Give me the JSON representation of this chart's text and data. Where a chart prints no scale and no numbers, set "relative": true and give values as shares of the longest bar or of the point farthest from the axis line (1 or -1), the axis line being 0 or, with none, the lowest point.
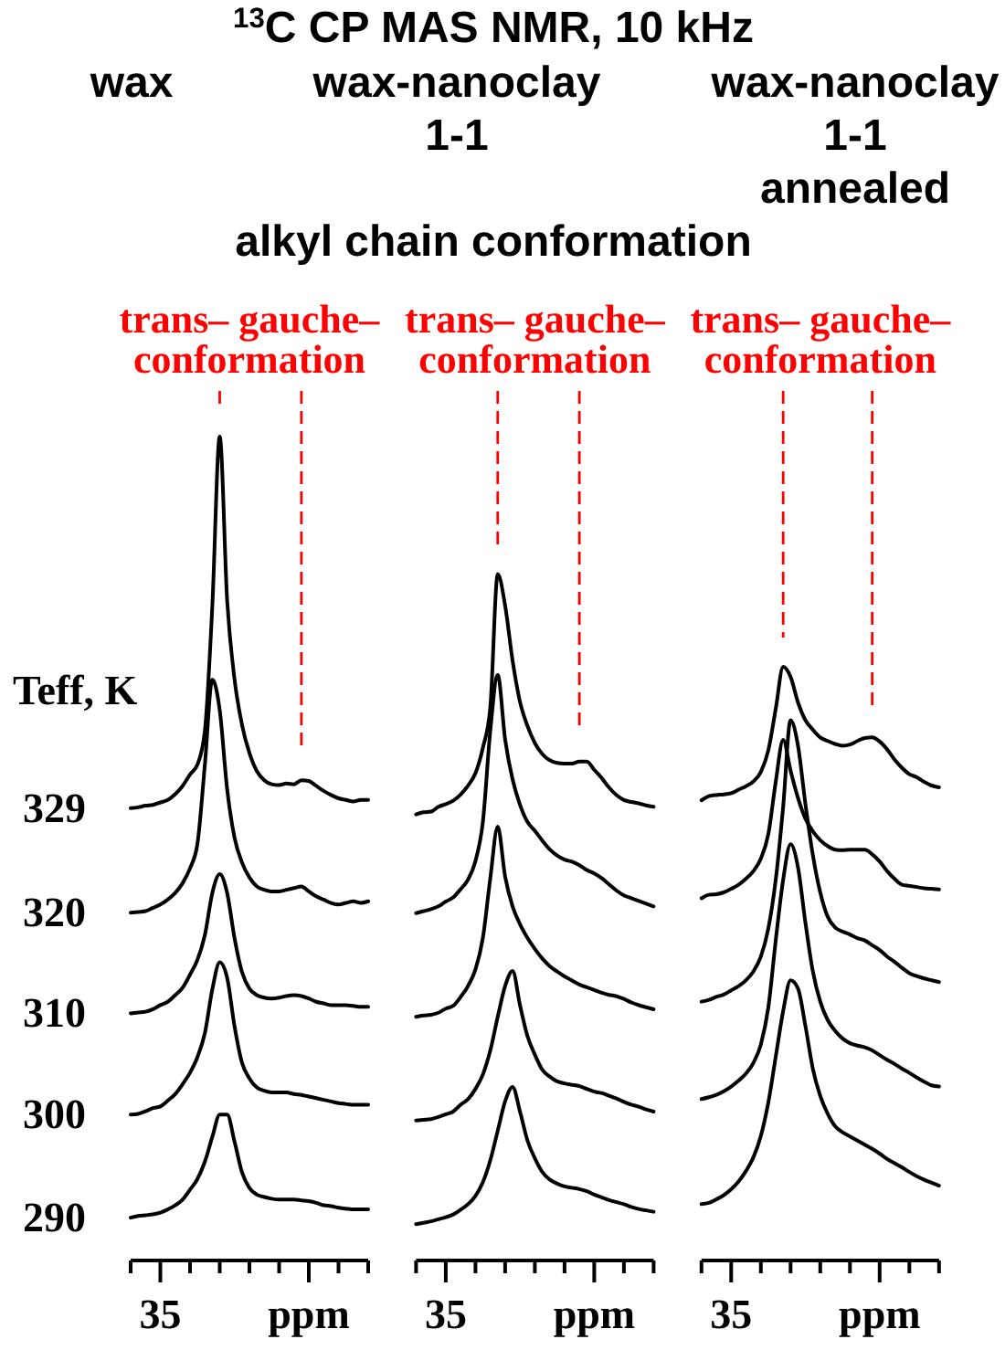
{
  "chart_data": [
    {
      "type": "line",
      "subtitle": "wax",
      "ylabel": "Teff, K",
      "relative": true,
      "categories": [
        null,
        null,
        null,
        null,
        "35",
        null,
        null,
        null,
        null,
        null,
        null,
        null,
        null,
        null,
        null,
        null,
        null,
        null,
        null,
        null,
        null,
        null,
        null,
        null,
        "ppm",
        null,
        null,
        null,
        null,
        null,
        null,
        null,
        null
      ],
      "series": [
        {
          "name": "329",
          "color": "#000000",
          "values": [
            0.549,
            0.55,
            0.552,
            0.553,
            0.556,
            0.559,
            0.566,
            0.576,
            0.59,
            0.602,
            0.643,
            0.794,
            1.0,
            0.801,
            0.705,
            0.65,
            0.616,
            0.594,
            0.583,
            0.578,
            0.577,
            0.579,
            0.578,
            0.583,
            0.582,
            0.576,
            0.57,
            0.565,
            0.561,
            0.559,
            0.557,
            0.559,
            0.559
          ]
        },
        {
          "name": "320",
          "color": "#000000",
          "values": [
            0.422,
            0.423,
            0.424,
            0.428,
            0.432,
            0.438,
            0.446,
            0.458,
            0.476,
            0.506,
            0.602,
            0.705,
            0.668,
            0.572,
            0.513,
            0.483,
            0.465,
            0.454,
            0.45,
            0.448,
            0.448,
            0.45,
            0.452,
            0.454,
            0.448,
            0.442,
            0.438,
            0.434,
            0.432,
            0.434,
            0.436,
            0.434,
            0.436
          ]
        },
        {
          "name": "310",
          "color": "#000000",
          "values": [
            0.3,
            0.301,
            0.302,
            0.305,
            0.31,
            0.314,
            0.322,
            0.331,
            0.347,
            0.365,
            0.395,
            0.446,
            0.469,
            0.446,
            0.391,
            0.35,
            0.33,
            0.322,
            0.319,
            0.318,
            0.319,
            0.321,
            0.322,
            0.321,
            0.318,
            0.314,
            0.312,
            0.31,
            0.31,
            0.31,
            0.309,
            0.308,
            0.308
          ]
        },
        {
          "name": "300",
          "color": "#000000",
          "values": [
            0.177,
            0.178,
            0.181,
            0.185,
            0.187,
            0.194,
            0.202,
            0.214,
            0.228,
            0.247,
            0.276,
            0.329,
            0.362,
            0.343,
            0.284,
            0.24,
            0.221,
            0.21,
            0.206,
            0.204,
            0.204,
            0.204,
            0.202,
            0.201,
            0.199,
            0.197,
            0.195,
            0.193,
            0.191,
            0.19,
            0.189,
            0.189,
            0.189
          ]
        },
        {
          "name": "290",
          "color": "#000000",
          "values": [
            0.052,
            0.054,
            0.055,
            0.056,
            0.058,
            0.062,
            0.067,
            0.074,
            0.086,
            0.099,
            0.12,
            0.15,
            0.177,
            0.177,
            0.144,
            0.107,
            0.088,
            0.08,
            0.077,
            0.075,
            0.074,
            0.074,
            0.074,
            0.073,
            0.072,
            0.07,
            0.067,
            0.066,
            0.064,
            0.063,
            0.062,
            0.062,
            0.062
          ]
        }
      ],
      "annotations": [
        "trans– gauche– conformation"
      ]
    },
    {
      "type": "line",
      "title": "$^{13}$C CP MAS NMR, 10 kHz",
      "subtitle": "wax-nanoclay 1-1",
      "relative": true,
      "categories": [
        null,
        null,
        null,
        null,
        "35",
        null,
        null,
        null,
        null,
        null,
        null,
        null,
        null,
        null,
        null,
        null,
        null,
        null,
        null,
        null,
        null,
        null,
        null,
        null,
        "ppm",
        null,
        null,
        null,
        null,
        null,
        null,
        null,
        null
      ],
      "series": [
        {
          "color": "#000000",
          "values": [
            0.65,
            0.653,
            0.654,
            0.661,
            0.665,
            0.67,
            0.679,
            0.692,
            0.71,
            0.747,
            0.806,
            1.0,
            0.954,
            0.874,
            0.814,
            0.779,
            0.754,
            0.738,
            0.729,
            0.725,
            0.724,
            0.724,
            0.727,
            0.727,
            0.715,
            0.703,
            0.689,
            0.678,
            0.671,
            0.668,
            0.666,
            0.663,
            0.661
          ]
        },
        {
          "color": "#000000",
          "values": [
            0.506,
            0.509,
            0.512,
            0.516,
            0.523,
            0.529,
            0.541,
            0.555,
            0.582,
            0.639,
            0.772,
            0.853,
            0.759,
            0.701,
            0.664,
            0.639,
            0.626,
            0.612,
            0.599,
            0.59,
            0.584,
            0.581,
            0.576,
            0.569,
            0.564,
            0.557,
            0.548,
            0.539,
            0.532,
            0.528,
            0.524,
            0.52,
            0.516
          ]
        },
        {
          "color": "#000000",
          "values": [
            0.355,
            0.357,
            0.358,
            0.361,
            0.367,
            0.371,
            0.384,
            0.4,
            0.424,
            0.47,
            0.557,
            0.632,
            0.559,
            0.516,
            0.49,
            0.47,
            0.454,
            0.44,
            0.429,
            0.421,
            0.414,
            0.408,
            0.402,
            0.398,
            0.394,
            0.39,
            0.387,
            0.385,
            0.381,
            0.376,
            0.372,
            0.369,
            0.366
          ]
        },
        {
          "color": "#000000",
          "values": [
            0.204,
            0.205,
            0.206,
            0.209,
            0.213,
            0.217,
            0.227,
            0.235,
            0.25,
            0.271,
            0.306,
            0.355,
            0.4,
            0.422,
            0.372,
            0.327,
            0.3,
            0.278,
            0.268,
            0.261,
            0.258,
            0.256,
            0.254,
            0.25,
            0.246,
            0.244,
            0.24,
            0.236,
            0.231,
            0.227,
            0.224,
            0.22,
            0.217
          ]
        },
        {
          "color": "#000000",
          "values": [
            0.053,
            0.055,
            0.057,
            0.06,
            0.063,
            0.067,
            0.074,
            0.082,
            0.094,
            0.114,
            0.146,
            0.189,
            0.232,
            0.253,
            0.217,
            0.175,
            0.149,
            0.129,
            0.118,
            0.112,
            0.108,
            0.106,
            0.104,
            0.101,
            0.096,
            0.092,
            0.088,
            0.085,
            0.082,
            0.078,
            0.075,
            0.073,
            0.071
          ]
        }
      ],
      "annotations": [
        "trans– gauche– conformation",
        "alkyl chain conformation"
      ]
    },
    {
      "type": "line",
      "subtitle": "wax-nanoclay 1-1 annealed",
      "relative": true,
      "categories": [
        null,
        null,
        null,
        null,
        "35",
        null,
        null,
        null,
        null,
        null,
        null,
        null,
        null,
        null,
        null,
        null,
        null,
        null,
        null,
        null,
        null,
        null,
        null,
        null,
        "ppm",
        null,
        null,
        null,
        null,
        null,
        null,
        null,
        null
      ],
      "series": [
        {
          "color": "#000000",
          "values": [
            0.775,
            0.782,
            0.784,
            0.785,
            0.787,
            0.793,
            0.799,
            0.807,
            0.823,
            0.859,
            0.929,
            1.0,
            0.983,
            0.94,
            0.91,
            0.894,
            0.881,
            0.875,
            0.87,
            0.867,
            0.869,
            0.875,
            0.88,
            0.881,
            0.874,
            0.861,
            0.844,
            0.83,
            0.819,
            0.814,
            0.806,
            0.8,
            0.797
          ]
        },
        {
          "color": "#000000",
          "values": [
            0.61,
            0.616,
            0.617,
            0.62,
            0.626,
            0.633,
            0.643,
            0.656,
            0.677,
            0.718,
            0.806,
            0.877,
            0.825,
            0.779,
            0.744,
            0.723,
            0.708,
            0.698,
            0.692,
            0.691,
            0.692,
            0.692,
            0.692,
            0.684,
            0.672,
            0.656,
            0.643,
            0.633,
            0.631,
            0.629,
            0.627,
            0.626,
            0.625
          ]
        },
        {
          "color": "#000000",
          "values": [
            0.436,
            0.439,
            0.444,
            0.448,
            0.455,
            0.462,
            0.472,
            0.487,
            0.512,
            0.559,
            0.641,
            0.764,
            0.91,
            0.867,
            0.769,
            0.683,
            0.62,
            0.579,
            0.561,
            0.554,
            0.549,
            0.543,
            0.539,
            0.531,
            0.523,
            0.512,
            0.503,
            0.493,
            0.484,
            0.479,
            0.475,
            0.472,
            0.469
          ]
        },
        {
          "color": "#000000",
          "values": [
            0.272,
            0.275,
            0.279,
            0.285,
            0.293,
            0.303,
            0.315,
            0.333,
            0.364,
            0.426,
            0.539,
            0.641,
            0.701,
            0.662,
            0.569,
            0.487,
            0.436,
            0.405,
            0.387,
            0.374,
            0.366,
            0.362,
            0.359,
            0.354,
            0.346,
            0.338,
            0.331,
            0.323,
            0.316,
            0.308,
            0.301,
            0.295,
            0.293
          ]
        },
        {
          "color": "#000000",
          "values": [
            0.095,
            0.097,
            0.103,
            0.11,
            0.12,
            0.133,
            0.151,
            0.174,
            0.21,
            0.266,
            0.343,
            0.42,
            0.472,
            0.458,
            0.395,
            0.323,
            0.277,
            0.247,
            0.226,
            0.216,
            0.209,
            0.202,
            0.195,
            0.188,
            0.18,
            0.171,
            0.164,
            0.157,
            0.149,
            0.142,
            0.136,
            0.131,
            0.126
          ]
        }
      ],
      "annotations": [
        "trans– gauche– conformation"
      ]
    }
  ]
}
